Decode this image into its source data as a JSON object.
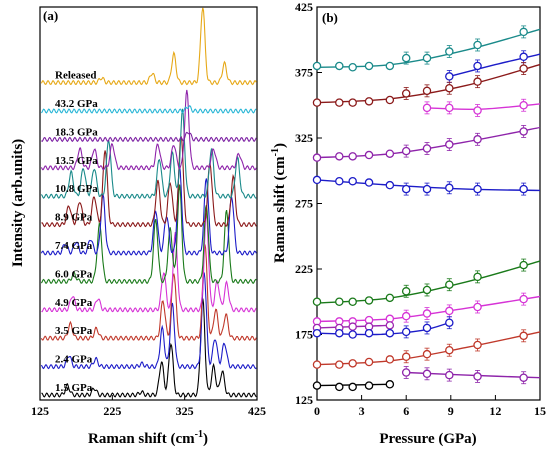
{
  "chart_data": [
    {
      "type": "line",
      "panel_label": "(a)",
      "xlabel": "Raman shift (cm",
      "xlabel_sup": "-1",
      "xlabel_end": ")",
      "ylabel": "Intensity (arb.units)",
      "xlim": [
        125,
        425
      ],
      "xticks": [
        "125",
        "225",
        "325",
        "425"
      ],
      "xtick_values": [
        125,
        225,
        325,
        425
      ],
      "series": [
        {
          "name": "1.5 GPa",
          "color": "#000000",
          "peaks": [
            [
              163,
              0.1
            ],
            [
              200,
              0.07
            ],
            [
              265,
              0.03
            ],
            [
              293,
              0.35
            ],
            [
              306,
              0.55
            ],
            [
              350,
              1.0
            ],
            [
              365,
              0.3
            ],
            [
              377,
              0.25
            ]
          ]
        },
        {
          "name": "2.4 GPa",
          "color": "#1c1cc8",
          "peaks": [
            [
              165,
              0.12
            ],
            [
              202,
              0.08
            ],
            [
              266,
              0.03
            ],
            [
              294,
              0.4
            ],
            [
              308,
              0.65
            ],
            [
              352,
              1.0
            ],
            [
              367,
              0.3
            ],
            [
              380,
              0.25
            ]
          ]
        },
        {
          "name": "3.5 GPa",
          "color": "#c0392b",
          "peaks": [
            [
              167,
              0.15
            ],
            [
              203,
              0.1
            ],
            [
              295,
              0.4
            ],
            [
              310,
              0.7
            ],
            [
              353,
              1.0
            ],
            [
              368,
              0.3
            ],
            [
              382,
              0.25
            ]
          ]
        },
        {
          "name": "4.9 GPa",
          "color": "#d633d6",
          "peaks": [
            [
              170,
              0.15
            ],
            [
              205,
              0.12
            ],
            [
              296,
              0.4
            ],
            [
              312,
              0.8
            ],
            [
              355,
              1.0
            ],
            [
              370,
              0.3
            ],
            [
              383,
              0.28
            ]
          ]
        },
        {
          "name": "6.0 GPa",
          "color": "#1a7a1a",
          "peaks": [
            [
              172,
              0.08
            ],
            [
              205,
              0.15
            ],
            [
              208,
              0.5
            ],
            [
              285,
              0.65
            ],
            [
              305,
              0.55
            ],
            [
              318,
              1.0
            ],
            [
              355,
              0.8
            ],
            [
              383,
              0.75
            ]
          ]
        },
        {
          "name": "7.4 GPa",
          "color": "#1c1cc8",
          "peaks": [
            [
              160,
              0.1
            ],
            [
              175,
              0.12
            ],
            [
              195,
              0.15
            ],
            [
              212,
              0.6
            ],
            [
              285,
              0.45
            ],
            [
              300,
              0.4
            ],
            [
              318,
              0.9
            ],
            [
              355,
              0.8
            ],
            [
              390,
              0.6
            ]
          ]
        },
        {
          "name": "8.9 GPa",
          "color": "#8b1a1a",
          "peaks": [
            [
              165,
              0.2
            ],
            [
              180,
              0.25
            ],
            [
              200,
              0.3
            ],
            [
              215,
              0.8
            ],
            [
              288,
              0.45
            ],
            [
              305,
              0.45
            ],
            [
              320,
              0.95
            ],
            [
              360,
              0.65
            ],
            [
              392,
              0.5
            ]
          ]
        },
        {
          "name": "10.8 GPa",
          "color": "#1a8a8a",
          "peaks": [
            [
              168,
              0.25
            ],
            [
              185,
              0.3
            ],
            [
              200,
              0.3
            ],
            [
              220,
              0.6
            ],
            [
              290,
              0.4
            ],
            [
              308,
              0.45
            ],
            [
              322,
              0.9
            ],
            [
              362,
              0.5
            ],
            [
              398,
              0.4
            ]
          ]
        },
        {
          "name": "13.5 GPa",
          "color": "#8e24aa",
          "peaks": [
            [
              180,
              0.2
            ],
            [
              200,
              0.2
            ],
            [
              225,
              0.25
            ],
            [
              288,
              0.25
            ],
            [
              310,
              0.25
            ],
            [
              328,
              0.8
            ],
            [
              365,
              0.2
            ],
            [
              400,
              0.15
            ]
          ]
        },
        {
          "name": "18.3 GPa",
          "color": "#7b1fa2",
          "peaks": [
            [
              330,
              0.08
            ]
          ]
        },
        {
          "name": "43.2 GPa",
          "color": "#29b6d6",
          "peaks": [
            [
              330,
              0.05
            ]
          ]
        },
        {
          "name": "Released",
          "color": "#e6a817",
          "peaks": [
            [
              210,
              0.05
            ],
            [
              280,
              0.1
            ],
            [
              310,
              0.3
            ],
            [
              350,
              0.8
            ],
            [
              380,
              0.2
            ]
          ]
        }
      ]
    },
    {
      "type": "scatter",
      "panel_label": "(b)",
      "xlabel": "Pressure (GPa)",
      "ylabel": "Raman shift (cm",
      "ylabel_sup": "-1",
      "ylabel_end": ")",
      "xlim": [
        0,
        15
      ],
      "ylim": [
        125,
        425
      ],
      "xticks": [
        "0",
        "3",
        "6",
        "9",
        "12",
        "15"
      ],
      "xtick_values": [
        0,
        3,
        6,
        9,
        12,
        15
      ],
      "yticks": [
        "125",
        "175",
        "225",
        "275",
        "325",
        "375",
        "425"
      ],
      "ytick_values": [
        125,
        175,
        225,
        275,
        325,
        375,
        425
      ],
      "series": [
        {
          "color": "#1a8a8a",
          "points": [
            [
              0,
              380
            ],
            [
              1.5,
              380
            ],
            [
              2.4,
              379
            ],
            [
              3.5,
              380
            ],
            [
              4.9,
              380
            ],
            [
              6.0,
              386
            ],
            [
              7.4,
              386
            ],
            [
              8.9,
              391
            ],
            [
              10.8,
              396
            ],
            [
              13.9,
              406
            ]
          ],
          "fit": [
            [
              0,
              379
            ],
            [
              5,
              381
            ],
            [
              10,
              392
            ],
            [
              15,
              408
            ]
          ]
        },
        {
          "color": "#1c1cc8",
          "points": [
            [
              8.9,
              372
            ],
            [
              10.8,
              380
            ],
            [
              13.9,
              387
            ]
          ],
          "fit": [
            [
              8.9,
              372
            ],
            [
              12,
              381
            ],
            [
              15,
              389
            ]
          ]
        },
        {
          "color": "#8b1a1a",
          "points": [
            [
              0,
              352
            ],
            [
              1.5,
              352
            ],
            [
              2.4,
              352
            ],
            [
              3.5,
              353
            ],
            [
              4.9,
              354
            ],
            [
              6.0,
              359
            ],
            [
              7.4,
              361
            ],
            [
              8.9,
              363
            ],
            [
              10.8,
              368
            ],
            [
              13.9,
              378
            ]
          ],
          "fit": [
            [
              0,
              352
            ],
            [
              5,
              355
            ],
            [
              10,
              365
            ],
            [
              15,
              381
            ]
          ]
        },
        {
          "color": "#d633d6",
          "points": [
            [
              7.4,
              348
            ],
            [
              8.9,
              348
            ],
            [
              10.8,
              346
            ],
            [
              13.9,
              350
            ]
          ],
          "fit": [
            [
              7.4,
              348
            ],
            [
              11,
              347
            ],
            [
              15,
              351
            ]
          ]
        },
        {
          "color": "#8e24aa",
          "points": [
            [
              0,
              310
            ],
            [
              1.5,
              311
            ],
            [
              2.4,
              311
            ],
            [
              3.5,
              312
            ],
            [
              4.9,
              313
            ],
            [
              6.0,
              315
            ],
            [
              7.4,
              317
            ],
            [
              8.9,
              320
            ],
            [
              10.8,
              324
            ],
            [
              13.9,
              330
            ]
          ],
          "fit": [
            [
              0,
              310
            ],
            [
              5,
              313
            ],
            [
              10,
              322
            ],
            [
              15,
              333
            ]
          ]
        },
        {
          "color": "#1c1cc8",
          "points": [
            [
              0,
              293
            ],
            [
              1.5,
              292
            ],
            [
              2.4,
              292
            ],
            [
              3.5,
              291
            ],
            [
              4.9,
              289
            ],
            [
              6.0,
              286
            ],
            [
              7.4,
              286
            ],
            [
              8.9,
              287
            ],
            [
              10.8,
              286
            ],
            [
              13.9,
              286
            ]
          ],
          "fit": [
            [
              0,
              293
            ],
            [
              5,
              289
            ],
            [
              10,
              286
            ],
            [
              15,
              285
            ]
          ]
        },
        {
          "color": "#1a7a1a",
          "points": [
            [
              0,
              200
            ],
            [
              1.5,
              200
            ],
            [
              2.4,
              200
            ],
            [
              3.5,
              201
            ],
            [
              4.9,
              203
            ],
            [
              6.0,
              208
            ],
            [
              7.4,
              209
            ],
            [
              8.9,
              213
            ],
            [
              10.8,
              219
            ],
            [
              13.9,
              228
            ]
          ],
          "fit": [
            [
              0,
              199
            ],
            [
              5,
              203
            ],
            [
              10,
              215
            ],
            [
              15,
              231
            ]
          ]
        },
        {
          "color": "#d633d6",
          "points": [
            [
              0,
              185
            ],
            [
              1.5,
              185
            ],
            [
              2.4,
              185
            ],
            [
              3.5,
              186
            ],
            [
              4.9,
              187
            ],
            [
              6.0,
              189
            ],
            [
              7.4,
              191
            ],
            [
              8.9,
              193
            ],
            [
              10.8,
              196
            ],
            [
              13.9,
              202
            ]
          ],
          "fit": [
            [
              0,
              185
            ],
            [
              5,
              187
            ],
            [
              10,
              195
            ],
            [
              15,
              204
            ]
          ]
        },
        {
          "color": "#9c27b0",
          "points": [
            [
              0,
              180
            ],
            [
              1.5,
              180
            ],
            [
              2.4,
              181
            ],
            [
              3.5,
              181
            ],
            [
              4.9,
              182
            ]
          ],
          "fit": [
            [
              0,
              180
            ],
            [
              4.9,
              182
            ]
          ]
        },
        {
          "color": "#1c1cc8",
          "points": [
            [
              0,
              176
            ],
            [
              1.5,
              176
            ],
            [
              2.4,
              175
            ],
            [
              3.5,
              176
            ],
            [
              4.9,
              176
            ],
            [
              6.0,
              177
            ],
            [
              7.4,
              180
            ],
            [
              8.9,
              184
            ]
          ],
          "fit": [
            [
              0,
              176
            ],
            [
              4,
              175
            ],
            [
              7,
              178
            ],
            [
              8.9,
              184
            ]
          ]
        },
        {
          "color": "#c0392b",
          "points": [
            [
              0,
              152
            ],
            [
              1.5,
              152
            ],
            [
              2.4,
              153
            ],
            [
              3.5,
              154
            ],
            [
              4.9,
              156
            ],
            [
              6.0,
              158
            ],
            [
              7.4,
              160
            ],
            [
              8.9,
              163
            ],
            [
              10.8,
              167
            ],
            [
              13.9,
              174
            ]
          ],
          "fit": [
            [
              0,
              152
            ],
            [
              5,
              155
            ],
            [
              10,
              165
            ],
            [
              15,
              177
            ]
          ]
        },
        {
          "color": "#000000",
          "points": [
            [
              0,
              136
            ],
            [
              1.5,
              135
            ],
            [
              2.4,
              135
            ],
            [
              3.5,
              136
            ],
            [
              4.9,
              137
            ]
          ],
          "fit": [
            [
              0,
              136
            ],
            [
              4.9,
              137
            ]
          ]
        },
        {
          "color": "#8e24aa",
          "points": [
            [
              6.0,
              146
            ],
            [
              7.4,
              145
            ],
            [
              8.9,
              144
            ],
            [
              10.8,
              143
            ],
            [
              13.9,
              142
            ]
          ],
          "fit": [
            [
              6.0,
              146
            ],
            [
              10,
              144
            ],
            [
              15,
              142
            ]
          ]
        }
      ]
    }
  ]
}
